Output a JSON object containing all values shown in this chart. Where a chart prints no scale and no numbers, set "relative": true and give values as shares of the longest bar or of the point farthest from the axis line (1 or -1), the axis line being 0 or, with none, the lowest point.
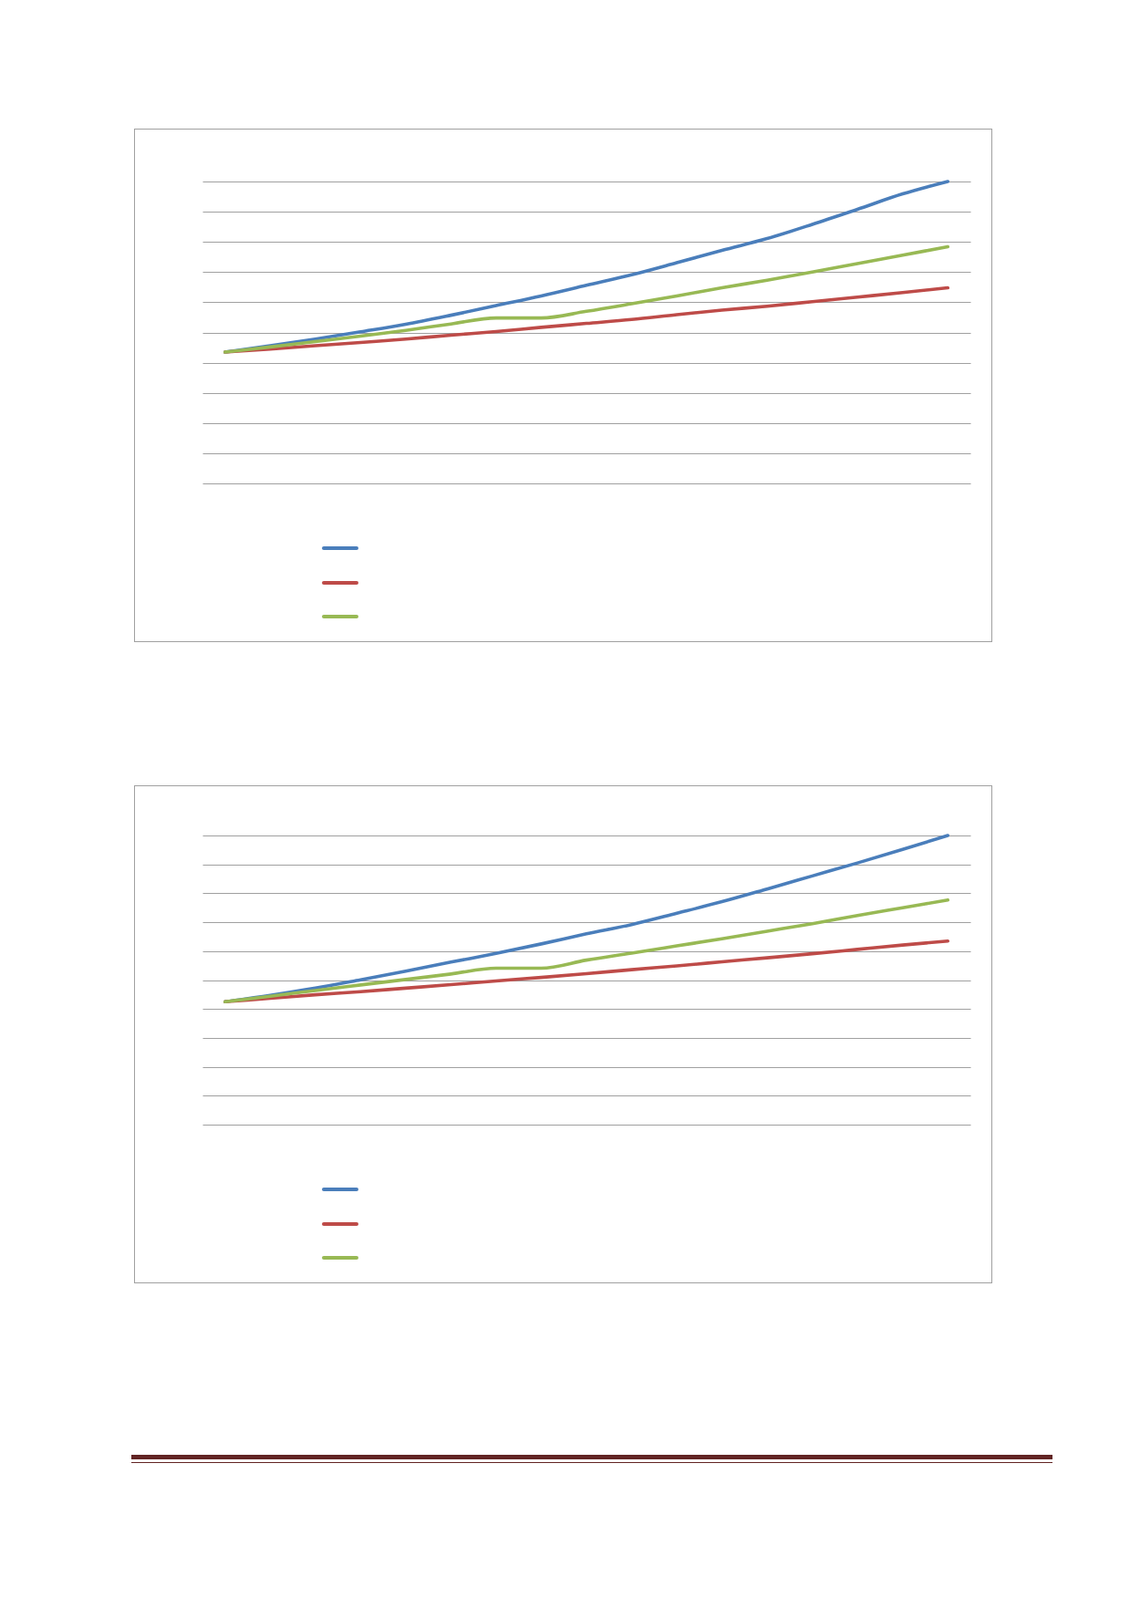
{
  "chart_data": [
    {
      "type": "line",
      "relative": true,
      "categories": [
        null,
        null,
        null,
        null,
        null,
        null,
        null,
        null,
        null,
        null,
        null,
        null,
        null,
        null,
        null,
        null,
        null
      ],
      "series": [
        {
          "color": "#4a7ebb",
          "values": [
            0.435,
            0.456,
            0.478,
            0.502,
            0.527,
            0.557,
            0.589,
            0.621,
            0.656,
            0.691,
            0.731,
            0.772,
            0.811,
            0.858,
            0.908,
            0.959,
            1
          ]
        },
        {
          "color": "#be4b48",
          "values": [
            0.435,
            0.445,
            0.456,
            0.467,
            0.478,
            0.491,
            0.503,
            0.517,
            0.53,
            0.543,
            0.559,
            0.574,
            0.587,
            0.602,
            0.617,
            0.632,
            0.648
          ]
        },
        {
          "color": "#98b954",
          "values": [
            0.435,
            0.452,
            0.47,
            0.488,
            0.507,
            0.528,
            0.548,
            0.548,
            0.57,
            0.595,
            0.621,
            0.648,
            0.673,
            0.7,
            0.728,
            0.756,
            0.784
          ]
        }
      ],
      "grid": "y"
    },
    {
      "type": "line",
      "relative": true,
      "categories": [
        null,
        null,
        null,
        null,
        null,
        null,
        null,
        null,
        null,
        null,
        null,
        null,
        null,
        null,
        null,
        null,
        null
      ],
      "series": [
        {
          "color": "#4a7ebb",
          "values": [
            0.425,
            0.447,
            0.472,
            0.501,
            0.531,
            0.562,
            0.592,
            0.625,
            0.66,
            0.692,
            0.731,
            0.771,
            0.815,
            0.86,
            0.905,
            0.952,
            1
          ]
        },
        {
          "color": "#be4b48",
          "values": [
            0.425,
            0.437,
            0.449,
            0.46,
            0.472,
            0.484,
            0.497,
            0.509,
            0.522,
            0.536,
            0.549,
            0.563,
            0.577,
            0.591,
            0.606,
            0.621,
            0.635
          ]
        },
        {
          "color": "#98b954",
          "values": [
            0.425,
            0.444,
            0.464,
            0.483,
            0.502,
            0.521,
            0.541,
            0.541,
            0.569,
            0.593,
            0.618,
            0.643,
            0.669,
            0.695,
            0.723,
            0.75,
            0.777
          ]
        }
      ],
      "grid": "y"
    }
  ]
}
